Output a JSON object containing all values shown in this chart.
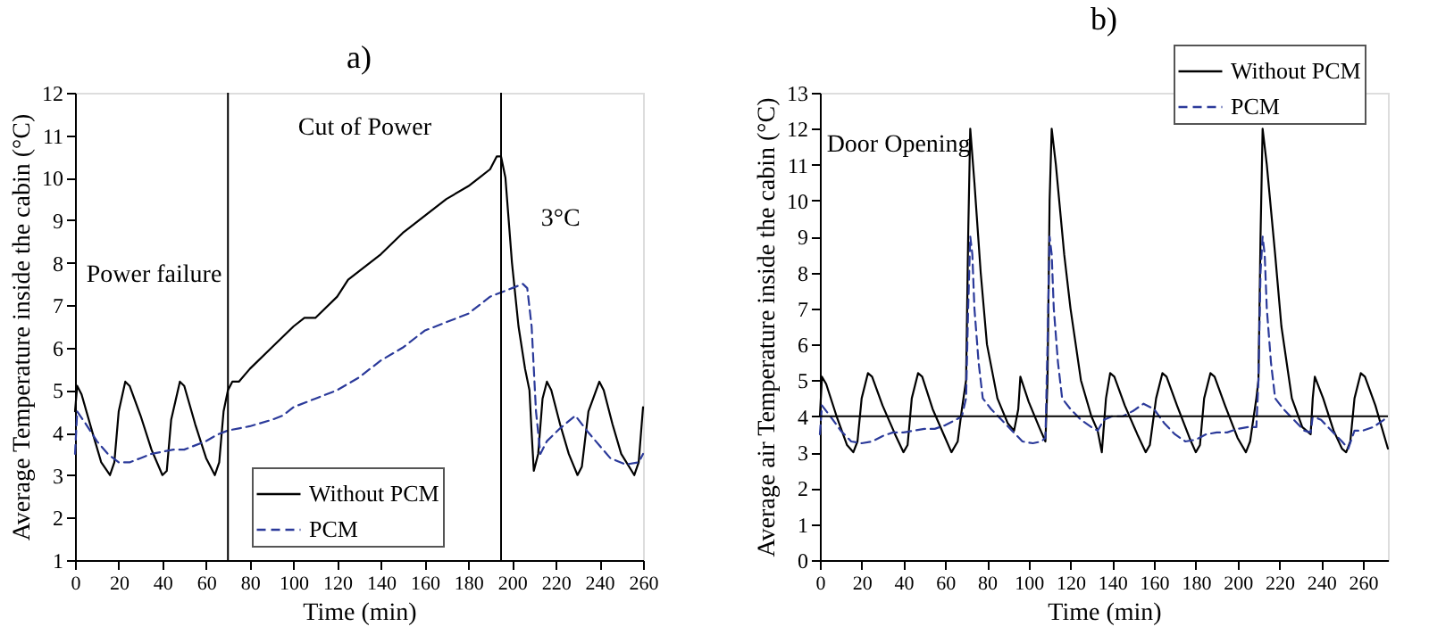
{
  "chart_data": [
    {
      "type": "line",
      "title": "a)",
      "xlabel": "Time (min)",
      "ylabel": "Average Temperature inside the cabin (°C)",
      "xlim": [
        0,
        260
      ],
      "ylim": [
        1,
        12
      ],
      "xticks": [
        0,
        20,
        40,
        60,
        80,
        100,
        120,
        140,
        160,
        180,
        200,
        220,
        240,
        260
      ],
      "yticks": [
        1,
        2,
        3,
        4,
        5,
        6,
        7,
        8,
        9,
        10,
        11,
        12
      ],
      "grid": false,
      "legend": "bottom",
      "series": [
        {
          "name": "Without PCM",
          "color": "#000000",
          "line_style": "solid",
          "x": [
            0,
            1,
            3,
            8,
            12,
            16,
            18,
            20,
            23,
            25,
            30,
            35,
            40,
            42,
            44,
            48,
            50,
            55,
            60,
            64,
            66,
            68,
            70,
            72,
            75,
            80,
            90,
            100,
            105,
            110,
            120,
            125,
            130,
            140,
            150,
            160,
            170,
            180,
            185,
            190,
            193,
            195,
            197,
            200,
            203,
            206,
            208,
            209,
            210,
            212,
            214,
            216,
            218,
            222,
            226,
            230,
            232,
            235,
            240,
            242,
            246,
            250,
            256,
            258,
            260
          ],
          "values": [
            4.5,
            5.1,
            4.9,
            4.0,
            3.3,
            3.0,
            3.3,
            4.5,
            5.2,
            5.1,
            4.4,
            3.6,
            3.0,
            3.1,
            4.3,
            5.2,
            5.1,
            4.2,
            3.4,
            3.0,
            3.3,
            4.5,
            5.0,
            5.2,
            5.2,
            5.5,
            6.0,
            6.5,
            6.7,
            6.7,
            7.2,
            7.6,
            7.8,
            8.2,
            8.7,
            9.1,
            9.5,
            9.8,
            10.0,
            10.2,
            10.5,
            10.5,
            10.0,
            8.0,
            6.5,
            5.5,
            5.0,
            4.0,
            3.1,
            3.5,
            4.8,
            5.2,
            5.0,
            4.2,
            3.5,
            3.0,
            3.2,
            4.5,
            5.2,
            5.0,
            4.2,
            3.5,
            3.0,
            3.3,
            4.6
          ]
        },
        {
          "name": "PCM",
          "color": "#2b3a9a",
          "line_style": "dashed",
          "x": [
            0,
            1,
            5,
            10,
            15,
            20,
            25,
            30,
            35,
            40,
            45,
            50,
            55,
            60,
            65,
            70,
            75,
            80,
            90,
            95,
            100,
            110,
            120,
            130,
            140,
            150,
            160,
            170,
            180,
            190,
            200,
            205,
            207,
            209,
            211,
            213,
            216,
            222,
            229,
            235,
            245,
            252,
            258,
            260
          ],
          "values": [
            3.5,
            4.5,
            4.2,
            3.8,
            3.5,
            3.3,
            3.3,
            3.4,
            3.5,
            3.55,
            3.6,
            3.6,
            3.7,
            3.8,
            3.95,
            4.05,
            4.1,
            4.15,
            4.3,
            4.4,
            4.6,
            4.8,
            5.0,
            5.3,
            5.7,
            6.0,
            6.4,
            6.6,
            6.8,
            7.2,
            7.4,
            7.5,
            7.4,
            6.5,
            4.5,
            3.5,
            3.8,
            4.1,
            4.4,
            4.0,
            3.4,
            3.25,
            3.3,
            3.5
          ]
        }
      ],
      "ref_lines": [
        {
          "axis": "x",
          "value": 70,
          "color": "#000000"
        },
        {
          "axis": "x",
          "value": 195,
          "color": "#000000"
        }
      ],
      "annotations": [
        "Cut of Power",
        "3°C",
        "Power failure"
      ]
    },
    {
      "type": "line",
      "title": "b)",
      "xlabel": "Time (min)",
      "ylabel": "Average air Temperature inside the cabin (°C)",
      "xlim": [
        0,
        272
      ],
      "ylim": [
        0,
        13
      ],
      "xticks": [
        0,
        20,
        40,
        60,
        80,
        100,
        120,
        140,
        160,
        180,
        200,
        220,
        240,
        260
      ],
      "yticks": [
        0,
        1,
        2,
        3,
        4,
        5,
        6,
        7,
        8,
        9,
        10,
        11,
        12,
        13
      ],
      "grid": false,
      "legend": "top right",
      "series": [
        {
          "name": "Without PCM",
          "color": "#000000",
          "line_style": "solid",
          "x": [
            0,
            1,
            3,
            8,
            13,
            16,
            18,
            20,
            23,
            25,
            30,
            36,
            40,
            42,
            44,
            47,
            49,
            54,
            60,
            63,
            66,
            68,
            70,
            71,
            72,
            74,
            77,
            80,
            85,
            90,
            93,
            95,
            96,
            100,
            105,
            108,
            109,
            110,
            111,
            113,
            117,
            120,
            125,
            130,
            133,
            135,
            137,
            139,
            141,
            146,
            152,
            156,
            158,
            161,
            164,
            166,
            171,
            177,
            180,
            182,
            184,
            187,
            189,
            194,
            200,
            204,
            206,
            209,
            210,
            211,
            212,
            214,
            218,
            221,
            226,
            231,
            235,
            236,
            237,
            241,
            246,
            250,
            252,
            254,
            256,
            259,
            261,
            266,
            272
          ],
          "values": [
            4.0,
            5.1,
            4.9,
            4.0,
            3.2,
            3.0,
            3.3,
            4.5,
            5.2,
            5.1,
            4.3,
            3.5,
            3.0,
            3.2,
            4.5,
            5.2,
            5.1,
            4.2,
            3.4,
            3.0,
            3.3,
            4.2,
            5.0,
            9.0,
            12.0,
            10.5,
            8.0,
            6.0,
            4.5,
            3.8,
            3.6,
            4.2,
            5.1,
            4.4,
            3.7,
            3.3,
            5.0,
            10.0,
            12.0,
            11.0,
            8.5,
            7.0,
            5.0,
            4.0,
            3.6,
            3.0,
            4.5,
            5.2,
            5.1,
            4.3,
            3.5,
            3.0,
            3.2,
            4.5,
            5.2,
            5.1,
            4.3,
            3.4,
            3.0,
            3.2,
            4.5,
            5.2,
            5.1,
            4.3,
            3.4,
            3.0,
            3.3,
            4.5,
            5.0,
            9.0,
            12.0,
            11.0,
            8.5,
            6.5,
            4.5,
            3.7,
            3.5,
            4.5,
            5.1,
            4.5,
            3.6,
            3.1,
            3.0,
            3.3,
            4.5,
            5.2,
            5.1,
            4.3,
            3.1
          ]
        },
        {
          "name": "PCM",
          "color": "#2b3a9a",
          "line_style": "dashed",
          "x": [
            0,
            1,
            5,
            10,
            15,
            20,
            25,
            30,
            35,
            40,
            45,
            50,
            55,
            60,
            65,
            68,
            70,
            71,
            72,
            73,
            74,
            76,
            78,
            82,
            87,
            92,
            97,
            102,
            106,
            108,
            109,
            110,
            111,
            112,
            114,
            116,
            120,
            125,
            130,
            133,
            136,
            140,
            145,
            150,
            155,
            160,
            165,
            170,
            175,
            180,
            185,
            190,
            195,
            200,
            205,
            209,
            210,
            211,
            212,
            213,
            214,
            216,
            218,
            222,
            227,
            232,
            235,
            236,
            240,
            245,
            250,
            253,
            256,
            260,
            265,
            270,
            272
          ],
          "values": [
            3.5,
            4.3,
            4.0,
            3.6,
            3.3,
            3.25,
            3.3,
            3.45,
            3.55,
            3.55,
            3.6,
            3.65,
            3.65,
            3.75,
            3.9,
            4.0,
            4.5,
            7.0,
            9.0,
            8.5,
            7.0,
            5.5,
            4.5,
            4.2,
            3.9,
            3.6,
            3.3,
            3.25,
            3.3,
            3.4,
            6.0,
            9.0,
            8.5,
            7.0,
            5.5,
            4.5,
            4.2,
            3.9,
            3.7,
            3.6,
            3.9,
            4.0,
            4.0,
            4.15,
            4.35,
            4.2,
            3.8,
            3.5,
            3.3,
            3.35,
            3.5,
            3.55,
            3.55,
            3.65,
            3.7,
            3.7,
            5.0,
            8.0,
            9.0,
            8.5,
            7.0,
            5.5,
            4.5,
            4.2,
            3.9,
            3.6,
            3.55,
            4.0,
            3.9,
            3.6,
            3.3,
            3.1,
            3.6,
            3.6,
            3.7,
            3.9,
            4.0
          ]
        }
      ],
      "ref_lines": [
        {
          "axis": "y",
          "value": 4,
          "color": "#000000"
        }
      ],
      "annotations": [
        "Door Opening"
      ]
    }
  ]
}
